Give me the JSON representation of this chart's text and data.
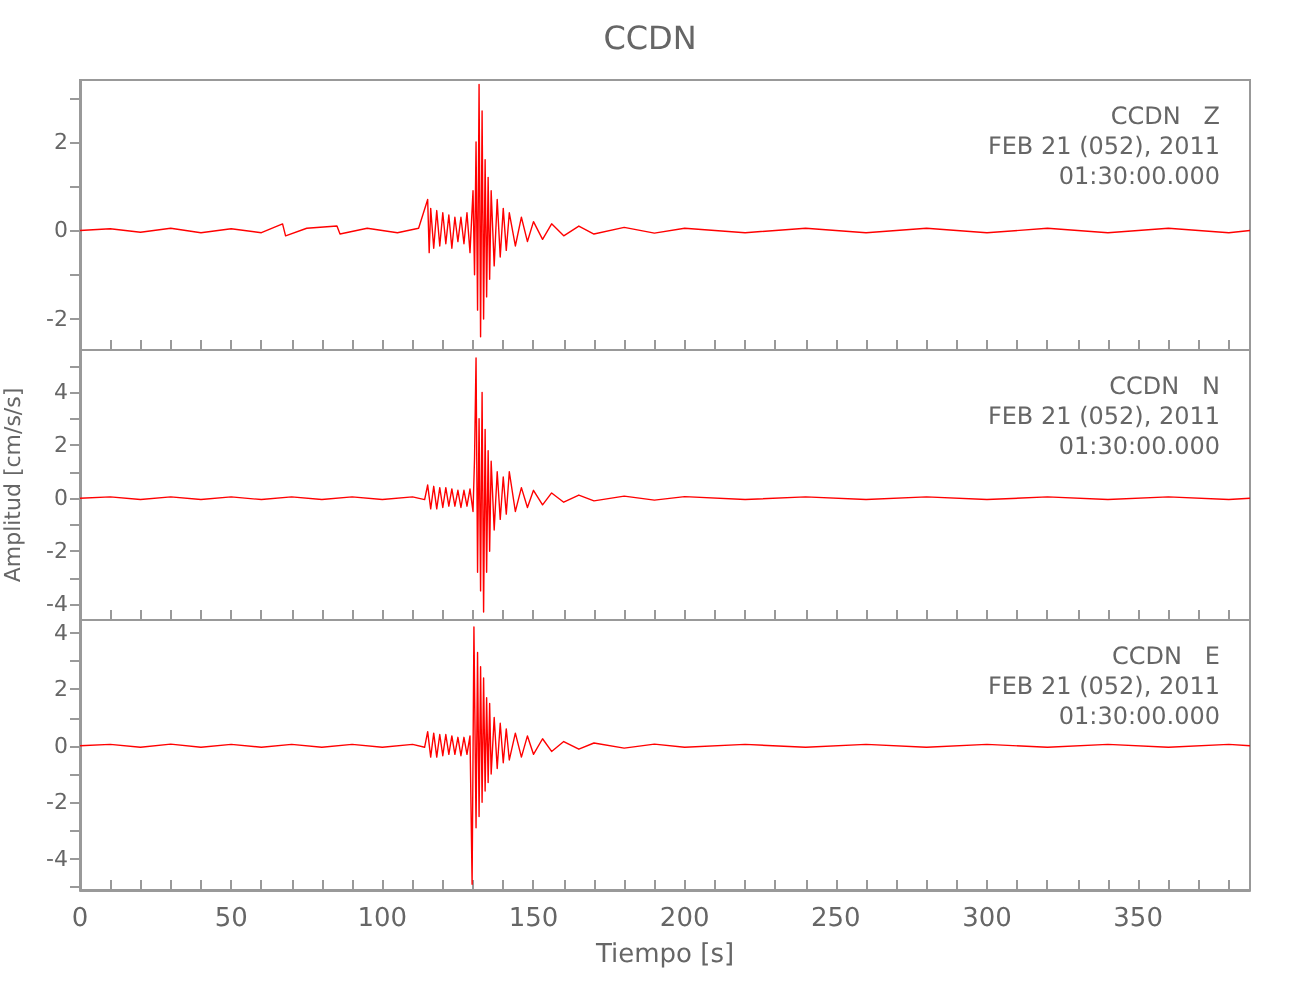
{
  "chart_data": [
    {
      "type": "line",
      "title": "CCDN",
      "annotations": [
        "CCDN   Z",
        "FEB 21 (052), 2011",
        "01:30:00.000"
      ],
      "tick_labels": "y",
      "marker": "none",
      "xlim": [
        0,
        387
      ],
      "ylim": [
        -2.7,
        3.4
      ],
      "xticks": [
        0,
        {
          "value": 10,
          "label": null
        },
        {
          "value": 20,
          "label": null
        },
        {
          "value": 30,
          "label": null
        },
        {
          "value": 40,
          "label": null
        },
        50,
        {
          "value": 60,
          "label": null
        },
        {
          "value": 70,
          "label": null
        },
        {
          "value": 80,
          "label": null
        },
        {
          "value": 90,
          "label": null
        },
        100,
        {
          "value": 110,
          "label": null
        },
        {
          "value": 120,
          "label": null
        },
        {
          "value": 130,
          "label": null
        },
        {
          "value": 140,
          "label": null
        },
        150,
        {
          "value": 160,
          "label": null
        },
        {
          "value": 170,
          "label": null
        },
        {
          "value": 180,
          "label": null
        },
        {
          "value": 190,
          "label": null
        },
        200,
        {
          "value": 210,
          "label": null
        },
        {
          "value": 220,
          "label": null
        },
        {
          "value": 230,
          "label": null
        },
        {
          "value": 240,
          "label": null
        },
        250,
        {
          "value": 260,
          "label": null
        },
        {
          "value": 270,
          "label": null
        },
        {
          "value": 280,
          "label": null
        },
        {
          "value": 290,
          "label": null
        },
        300,
        {
          "value": 310,
          "label": null
        },
        {
          "value": 320,
          "label": null
        },
        {
          "value": 330,
          "label": null
        },
        {
          "value": 340,
          "label": null
        },
        350,
        {
          "value": 360,
          "label": null
        },
        {
          "value": 370,
          "label": null
        },
        {
          "value": 380,
          "label": null
        }
      ],
      "yticks": [
        -2,
        {
          "value": -1,
          "label": null
        },
        0,
        {
          "value": 1,
          "label": null
        },
        2,
        {
          "value": 3,
          "label": null
        }
      ],
      "series": [
        {
          "color": "#ff0000",
          "x": [
            0,
            10,
            20,
            30,
            40,
            50,
            60,
            67,
            68,
            75,
            85,
            86,
            95,
            105,
            112,
            115,
            115.5,
            116,
            117,
            118,
            119,
            120,
            121,
            122,
            123,
            124,
            125,
            126,
            127,
            128,
            129,
            130,
            130.5,
            131,
            131.5,
            132,
            132.5,
            133,
            133.5,
            134,
            134.5,
            135,
            135.5,
            136,
            137,
            138,
            139,
            140,
            141,
            142,
            144,
            146,
            148,
            150,
            153,
            156,
            160,
            165,
            170,
            180,
            190,
            200,
            220,
            240,
            260,
            280,
            300,
            320,
            340,
            360,
            380,
            387
          ],
          "values": [
            0,
            0.04,
            -0.04,
            0.05,
            -0.05,
            0.04,
            -0.05,
            0.15,
            -0.12,
            0.05,
            0.1,
            -0.08,
            0.05,
            -0.05,
            0.05,
            0.7,
            -0.5,
            0.5,
            -0.4,
            0.45,
            -0.35,
            0.4,
            -0.3,
            0.35,
            -0.4,
            0.3,
            -0.25,
            0.3,
            -0.3,
            0.4,
            -0.5,
            0.9,
            -1.0,
            2.0,
            -1.8,
            3.3,
            -2.4,
            2.7,
            -2.0,
            1.6,
            -1.5,
            1.2,
            -1.1,
            0.9,
            -0.8,
            0.7,
            -0.6,
            0.5,
            -0.45,
            0.4,
            -0.35,
            0.3,
            -0.25,
            0.2,
            -0.2,
            0.15,
            -0.12,
            0.1,
            -0.08,
            0.07,
            -0.06,
            0.05,
            -0.05,
            0.05,
            -0.05,
            0.05,
            -0.05,
            0.05,
            -0.05,
            0.05,
            -0.05,
            0
          ]
        }
      ]
    },
    {
      "type": "line",
      "ylabel": "Amplitud [cm/s/s]",
      "annotations": [
        "CCDN   N",
        "FEB 21 (052), 2011",
        "01:30:00.000"
      ],
      "tick_labels": "y",
      "marker": "none",
      "xlim": [
        0,
        387
      ],
      "ylim": [
        -4.6,
        5.6
      ],
      "xticks": [
        0,
        {
          "value": 10,
          "label": null
        },
        {
          "value": 20,
          "label": null
        },
        {
          "value": 30,
          "label": null
        },
        {
          "value": 40,
          "label": null
        },
        50,
        {
          "value": 60,
          "label": null
        },
        {
          "value": 70,
          "label": null
        },
        {
          "value": 80,
          "label": null
        },
        {
          "value": 90,
          "label": null
        },
        100,
        {
          "value": 110,
          "label": null
        },
        {
          "value": 120,
          "label": null
        },
        {
          "value": 130,
          "label": null
        },
        {
          "value": 140,
          "label": null
        },
        150,
        {
          "value": 160,
          "label": null
        },
        {
          "value": 170,
          "label": null
        },
        {
          "value": 180,
          "label": null
        },
        {
          "value": 190,
          "label": null
        },
        200,
        {
          "value": 210,
          "label": null
        },
        {
          "value": 220,
          "label": null
        },
        {
          "value": 230,
          "label": null
        },
        {
          "value": 240,
          "label": null
        },
        250,
        {
          "value": 260,
          "label": null
        },
        {
          "value": 270,
          "label": null
        },
        {
          "value": 280,
          "label": null
        },
        {
          "value": 290,
          "label": null
        },
        300,
        {
          "value": 310,
          "label": null
        },
        {
          "value": 320,
          "label": null
        },
        {
          "value": 330,
          "label": null
        },
        {
          "value": 340,
          "label": null
        },
        350,
        {
          "value": 360,
          "label": null
        },
        {
          "value": 370,
          "label": null
        },
        {
          "value": 380,
          "label": null
        }
      ],
      "yticks": [
        -4,
        {
          "value": -3,
          "label": null
        },
        -2,
        {
          "value": -1,
          "label": null
        },
        0,
        {
          "value": 1,
          "label": null
        },
        2,
        {
          "value": 3,
          "label": null
        },
        4,
        {
          "value": 5,
          "label": null
        }
      ],
      "series": [
        {
          "color": "#ff0000",
          "x": [
            0,
            10,
            20,
            30,
            40,
            50,
            60,
            70,
            80,
            90,
            100,
            110,
            114,
            115,
            116,
            117,
            118,
            119,
            120,
            121,
            122,
            123,
            124,
            125,
            126,
            127,
            128,
            129,
            130,
            130.5,
            131,
            131.5,
            132,
            132.5,
            133,
            133.5,
            134,
            134.5,
            135,
            135.5,
            136,
            137,
            138,
            139,
            140,
            141,
            142,
            144,
            146,
            148,
            150,
            153,
            156,
            160,
            165,
            170,
            180,
            190,
            200,
            220,
            240,
            260,
            280,
            300,
            320,
            340,
            360,
            380,
            387
          ],
          "values": [
            0,
            0.05,
            -0.05,
            0.05,
            -0.05,
            0.05,
            -0.05,
            0.05,
            -0.05,
            0.05,
            -0.05,
            0.05,
            -0.05,
            0.5,
            -0.4,
            0.45,
            -0.4,
            0.4,
            -0.35,
            0.4,
            -0.3,
            0.35,
            -0.3,
            0.3,
            -0.35,
            0.3,
            -0.3,
            0.35,
            -0.5,
            1.5,
            5.3,
            -2.8,
            3.0,
            -3.5,
            4.0,
            -4.3,
            2.6,
            -2.8,
            1.8,
            -2.0,
            1.4,
            -1.2,
            1.0,
            -0.8,
            0.8,
            -0.6,
            1.0,
            -0.5,
            0.4,
            -0.35,
            0.3,
            -0.25,
            0.2,
            -0.15,
            0.12,
            -0.1,
            0.08,
            -0.07,
            0.06,
            -0.05,
            0.05,
            -0.05,
            0.05,
            -0.05,
            0.05,
            -0.05,
            0.05,
            -0.05,
            0
          ]
        }
      ]
    },
    {
      "type": "line",
      "xlabel": "Tiempo [s]",
      "annotations": [
        "CCDN   E",
        "FEB 21 (052), 2011",
        "01:30:00.000"
      ],
      "marker": "none",
      "xlim": [
        0,
        387
      ],
      "ylim": [
        -5.1,
        4.45
      ],
      "xticks": [
        0,
        {
          "value": 10,
          "label": null
        },
        {
          "value": 20,
          "label": null
        },
        {
          "value": 30,
          "label": null
        },
        {
          "value": 40,
          "label": null
        },
        50,
        {
          "value": 60,
          "label": null
        },
        {
          "value": 70,
          "label": null
        },
        {
          "value": 80,
          "label": null
        },
        {
          "value": 90,
          "label": null
        },
        100,
        {
          "value": 110,
          "label": null
        },
        {
          "value": 120,
          "label": null
        },
        {
          "value": 130,
          "label": null
        },
        {
          "value": 140,
          "label": null
        },
        150,
        {
          "value": 160,
          "label": null
        },
        {
          "value": 170,
          "label": null
        },
        {
          "value": 180,
          "label": null
        },
        {
          "value": 190,
          "label": null
        },
        200,
        {
          "value": 210,
          "label": null
        },
        {
          "value": 220,
          "label": null
        },
        {
          "value": 230,
          "label": null
        },
        {
          "value": 240,
          "label": null
        },
        250,
        {
          "value": 260,
          "label": null
        },
        {
          "value": 270,
          "label": null
        },
        {
          "value": 280,
          "label": null
        },
        {
          "value": 290,
          "label": null
        },
        300,
        {
          "value": 310,
          "label": null
        },
        {
          "value": 320,
          "label": null
        },
        {
          "value": 330,
          "label": null
        },
        {
          "value": 340,
          "label": null
        },
        350,
        {
          "value": 360,
          "label": null
        },
        {
          "value": 370,
          "label": null
        },
        {
          "value": 380,
          "label": null
        }
      ],
      "yticks": [
        {
          "value": -5,
          "label": null
        },
        -4,
        {
          "value": -3,
          "label": null
        },
        -2,
        {
          "value": -1,
          "label": null
        },
        0,
        {
          "value": 1,
          "label": null
        },
        2,
        {
          "value": 3,
          "label": null
        },
        4
      ],
      "series": [
        {
          "color": "#ff0000",
          "x": [
            0,
            10,
            20,
            30,
            40,
            50,
            60,
            70,
            80,
            90,
            100,
            110,
            114,
            115,
            116,
            117,
            118,
            119,
            120,
            121,
            122,
            123,
            124,
            125,
            126,
            127,
            128,
            129,
            129.7,
            130.3,
            131,
            131.5,
            132,
            132.5,
            133,
            133.5,
            134,
            134.5,
            135,
            135.5,
            136,
            137,
            138,
            139,
            140,
            141,
            142,
            144,
            146,
            148,
            150,
            153,
            156,
            160,
            165,
            170,
            180,
            190,
            200,
            220,
            240,
            260,
            280,
            300,
            320,
            340,
            360,
            380,
            387
          ],
          "values": [
            0,
            0.05,
            -0.05,
            0.06,
            -0.05,
            0.05,
            -0.05,
            0.05,
            -0.05,
            0.05,
            -0.05,
            0.05,
            -0.05,
            0.5,
            -0.4,
            0.45,
            -0.4,
            0.4,
            -0.35,
            0.4,
            -0.3,
            0.35,
            -0.3,
            0.3,
            -0.35,
            0.3,
            -0.3,
            0.35,
            -4.9,
            4.2,
            -2.9,
            3.3,
            -2.5,
            2.8,
            -2.0,
            2.4,
            -1.6,
            1.7,
            -1.3,
            1.5,
            -1.0,
            1.0,
            -0.8,
            0.8,
            -0.6,
            0.6,
            -0.5,
            0.45,
            -0.4,
            0.35,
            -0.3,
            0.25,
            -0.2,
            0.15,
            -0.12,
            0.1,
            -0.08,
            0.06,
            -0.05,
            0.05,
            -0.05,
            0.05,
            -0.05,
            0.05,
            -0.05,
            0.05,
            -0.05,
            0.05,
            0
          ]
        }
      ]
    }
  ]
}
